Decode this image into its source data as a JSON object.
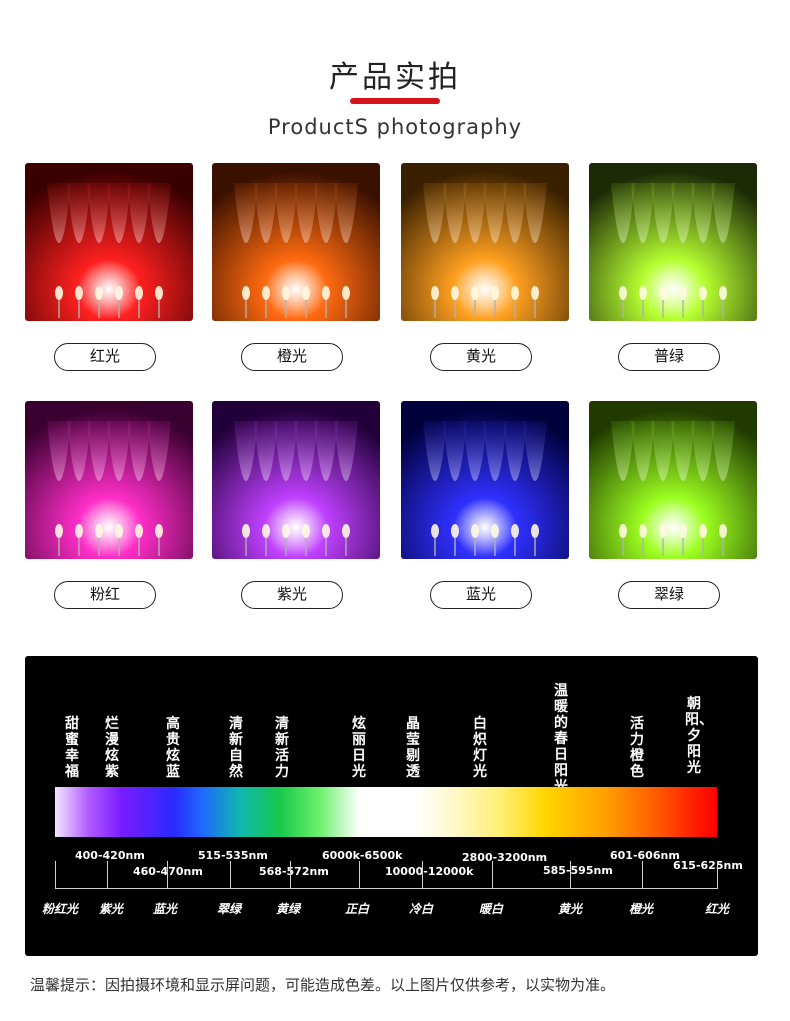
{
  "header": {
    "title": "产品实拍",
    "subtitle": "ProductS photography",
    "accent_color": "#d4141c"
  },
  "products": [
    {
      "label": "红光",
      "color": "#ff2020",
      "bg": "#3a0000"
    },
    {
      "label": "橙光",
      "color": "#ff6a10",
      "bg": "#3a1000"
    },
    {
      "label": "黄光",
      "color": "#ffa020",
      "bg": "#3a2000"
    },
    {
      "label": "普绿",
      "color": "#b6ff30",
      "bg": "#1c2a06"
    },
    {
      "label": "粉红",
      "color": "#ff2ec8",
      "bg": "#3a0030"
    },
    {
      "label": "紫光",
      "color": "#c040ff",
      "bg": "#22003a"
    },
    {
      "label": "蓝光",
      "color": "#3030ff",
      "bg": "#00003a"
    },
    {
      "label": "翠绿",
      "color": "#9cff20",
      "bg": "#203a00"
    }
  ],
  "spectrum": {
    "descriptions": [
      "甜蜜幸福",
      "烂漫炫紫",
      "高贵炫蓝",
      "清新自然",
      "清新活力",
      "炫丽日光",
      "晶莹剔透",
      "白炽灯光",
      "温暖的春日阳光",
      "活力橙色",
      "朝阳、夕阳光"
    ],
    "ranges": [
      "400-420nm",
      "460-470nm",
      "515-535nm",
      "568-572nm",
      "6000k-6500k",
      "10000-12000k",
      "2800-3200nm",
      "585-595nm",
      "601-606nm",
      "615-625nm"
    ],
    "color_names": [
      "粉红光",
      "紫光",
      "蓝光",
      "翠绿",
      "黄绿",
      "正白",
      "冷白",
      "暖白",
      "黄光",
      "橙光",
      "红光"
    ]
  },
  "footer": {
    "note": "温馨提示：因拍摄环境和显示屏问题，可能造成色差。以上图片仅供参考，以实物为准。"
  }
}
